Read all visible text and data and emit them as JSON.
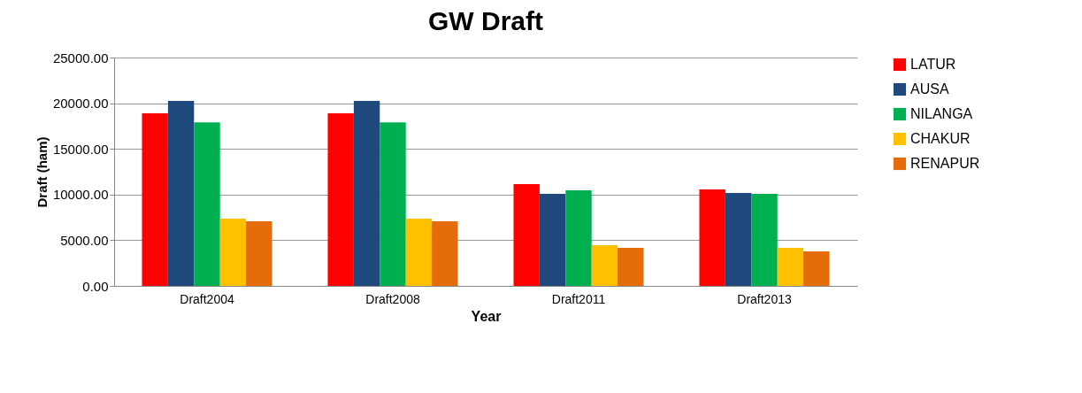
{
  "chart_data": {
    "type": "bar",
    "title": "GW Draft",
    "xlabel": "Year",
    "ylabel": "Draft (ham)",
    "categories": [
      "Draft2004",
      "Draft2008",
      "Draft2011",
      "Draft2013"
    ],
    "series": [
      {
        "name": "LATUR",
        "color": "#ff0000",
        "values": [
          18900,
          18900,
          11140,
          10560
        ]
      },
      {
        "name": "AUSA",
        "color": "#1f497d",
        "values": [
          20250,
          20250,
          10080,
          10170
        ]
      },
      {
        "name": "NILANGA",
        "color": "#00b050",
        "values": [
          17900,
          17900,
          10470,
          10080
        ]
      },
      {
        "name": "CHAKUR",
        "color": "#ffc000",
        "values": [
          7360,
          7360,
          4460,
          4170
        ]
      },
      {
        "name": "RENAPUR",
        "color": "#e46c0a",
        "values": [
          7070,
          7070,
          4170,
          3780
        ]
      }
    ],
    "ylim": [
      0,
      25000
    ],
    "yticks": [
      {
        "value": 0,
        "label": "0.00"
      },
      {
        "value": 5000,
        "label": "5000.00"
      },
      {
        "value": 10000,
        "label": "10000.00"
      },
      {
        "value": 15000,
        "label": "15000.00"
      },
      {
        "value": 20000,
        "label": "20000.00"
      },
      {
        "value": 25000,
        "label": "25000.00"
      }
    ],
    "grid": "y",
    "legend": "right"
  }
}
